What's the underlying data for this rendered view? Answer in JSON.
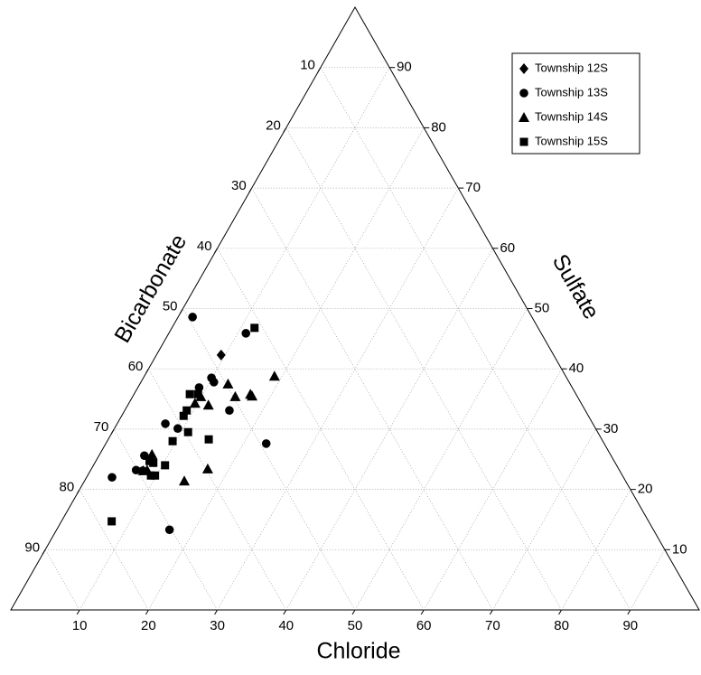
{
  "chart_data": {
    "type": "ternary",
    "bottom_axis": {
      "title": "Chloride",
      "ticks": [
        10,
        20,
        30,
        40,
        50,
        60,
        70,
        80,
        90
      ]
    },
    "left_axis": {
      "title": "Bicarbonate",
      "ticks": [
        10,
        20,
        30,
        40,
        50,
        60,
        70,
        80,
        90
      ]
    },
    "right_axis": {
      "title": "Sulfate",
      "ticks": [
        10,
        20,
        30,
        40,
        50,
        60,
        70,
        80,
        90
      ]
    },
    "grid": true,
    "legend": "top-right",
    "series": [
      {
        "name": "Township 12S",
        "marker": "diamond",
        "color": "#000000",
        "chloride": [
          9.4
        ],
        "sulfate": [
          42.3
        ]
      },
      {
        "name": "Township 13S",
        "marker": "circle",
        "color": "#000000",
        "chloride": [
          2.1,
          11.2,
          9.9,
          10.6,
          8.9,
          15.2,
          7.0,
          9.2,
          23.3,
          6.6,
          6.6,
          7.6,
          3.7,
          16.4
        ],
        "sulfate": [
          48.6,
          45.9,
          38.5,
          37.8,
          36.9,
          33.1,
          30.9,
          30.1,
          27.6,
          25.6,
          23.2,
          23.1,
          22.0,
          13.3
        ]
      },
      {
        "name": "Township 14S",
        "marker": "triangle",
        "color": "#000000",
        "chloride": [
          18.9,
          12.8,
          9.9,
          9.6,
          11.7,
          14.9,
          16.9,
          17.3,
          7.6,
          8.2,
          7.7,
          16.9,
          14.5
        ],
        "sulfate": [
          38.8,
          37.5,
          35.4,
          34.3,
          34.0,
          35.4,
          35.8,
          35.5,
          25.8,
          23.2,
          23.1,
          23.4,
          21.4
        ]
      },
      {
        "name": "Township 15S",
        "marker": "square",
        "color": "#000000",
        "chloride": [
          12.0,
          8.1,
          9.3,
          9.0,
          9.0,
          11.0,
          9.5,
          14.6,
          7.8,
          8.5,
          10.4,
          9.8,
          9.2,
          7.3
        ],
        "sulfate": [
          46.8,
          35.8,
          35.8,
          33.1,
          32.2,
          29.5,
          28.0,
          28.3,
          24.7,
          24.4,
          24.0,
          22.3,
          22.3,
          14.7
        ]
      }
    ]
  }
}
